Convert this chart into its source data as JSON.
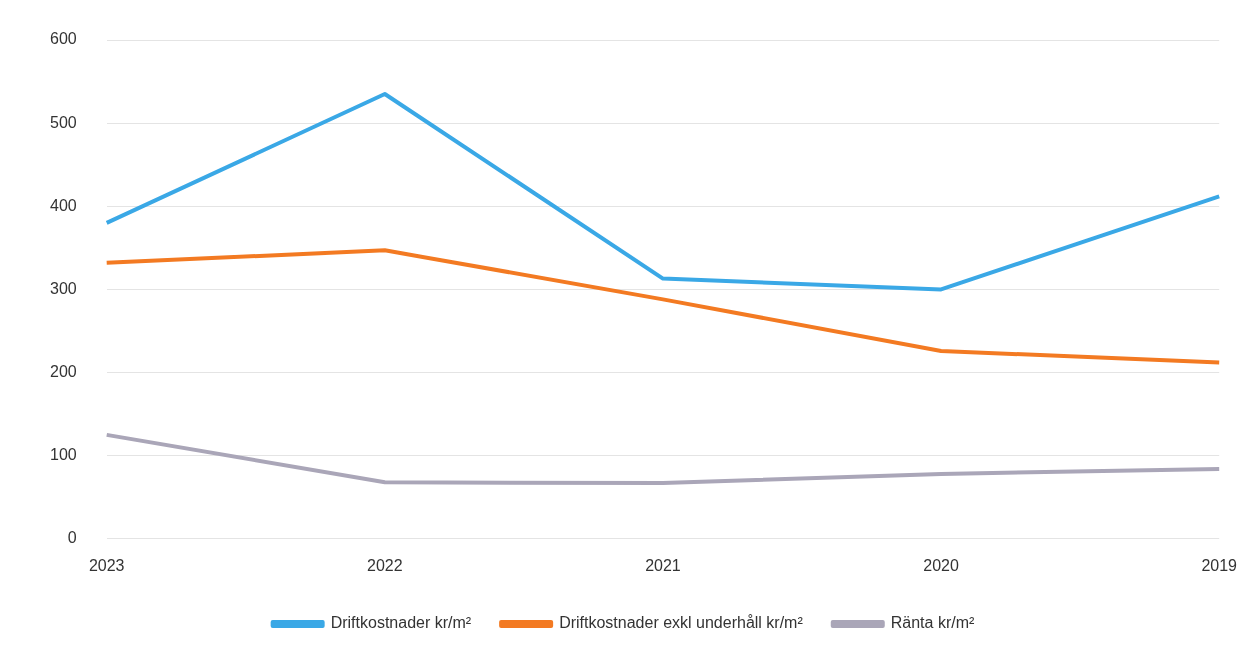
{
  "chart_data": {
    "type": "line",
    "categories": [
      "2023",
      "2022",
      "2021",
      "2020",
      "2019"
    ],
    "series": [
      {
        "name": "Driftkostnader kr/m²",
        "color": "#3aa8e6",
        "values": [
          380,
          535,
          313,
          300,
          412
        ]
      },
      {
        "name": "Driftkostnader exkl underhåll kr/m²",
        "color": "#f37a22",
        "values": [
          332,
          347,
          288,
          226,
          212
        ]
      },
      {
        "name": "Ränta kr/m²",
        "color": "#aaa6b8",
        "values": [
          125,
          68,
          67,
          78,
          84
        ]
      }
    ],
    "ylim": [
      0,
      600
    ],
    "yticks": [
      0,
      100,
      200,
      300,
      400,
      500,
      600
    ],
    "grid": "y",
    "legend": "bottom",
    "marker": "none",
    "line_style": "solid"
  }
}
